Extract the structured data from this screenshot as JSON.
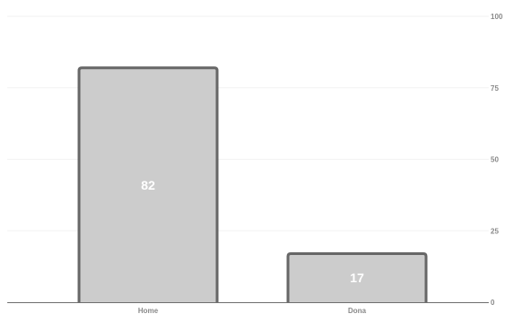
{
  "chart_data": {
    "type": "bar",
    "title": "",
    "xlabel": "",
    "ylabel": "",
    "categories": [
      "Home",
      "Dona"
    ],
    "values": [
      82,
      17
    ],
    "ylim": [
      0,
      100
    ],
    "yticks": [
      0,
      25,
      50,
      75,
      100
    ],
    "y_axis_side": "right",
    "grid": true,
    "legend": "none",
    "colors": {
      "bar_fill": "#cccccc",
      "bar_stroke": "#676767",
      "label": "#ffffff",
      "tick": "#8a8a8a"
    }
  }
}
